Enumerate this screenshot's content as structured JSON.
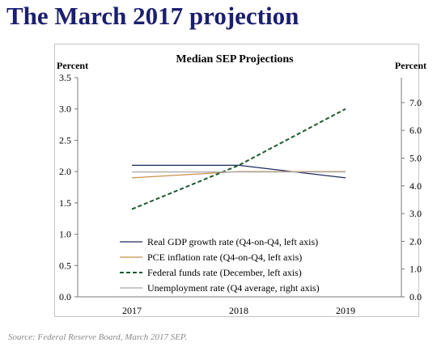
{
  "page": {
    "title": "The March 2017 projection",
    "source": "Source: Federal Reserve Board, March 2017 SEP."
  },
  "chart_data": {
    "type": "line",
    "title": "Median SEP Projections",
    "ylabel_left": "Percent",
    "ylabel_right": "Percent",
    "categories": [
      "2017",
      "2018",
      "2019"
    ],
    "ylim_left": [
      0,
      3.5
    ],
    "yticks_left": [
      "0.0",
      "0.5",
      "1.0",
      "1.5",
      "2.0",
      "2.5",
      "3.0",
      "3.5"
    ],
    "ylim_right": [
      0,
      7.9
    ],
    "yticks_right": [
      "0.0",
      "1.0",
      "2.0",
      "3.0",
      "4.0",
      "5.0",
      "6.0",
      "7.0"
    ],
    "grid": false,
    "legend_position": "bottom-center",
    "series": [
      {
        "name": "Real GDP growth rate (Q4-on-Q4, left axis)",
        "axis": "left",
        "values": [
          2.1,
          2.1,
          1.9
        ],
        "color": "#1f2a5c",
        "dash": "none"
      },
      {
        "name": "PCE inflation rate (Q4-on-Q4, left axis)",
        "axis": "left",
        "values": [
          1.9,
          2.0,
          2.0
        ],
        "color": "#c8914a",
        "dash": "none"
      },
      {
        "name": "Federal funds rate (December, left axis)",
        "axis": "left",
        "values": [
          1.4,
          2.1,
          3.0
        ],
        "color": "#1d5a32",
        "dash": "dashed"
      },
      {
        "name": "Unemployment rate (Q4 average, right axis)",
        "axis": "right",
        "values": [
          4.5,
          4.5,
          4.5
        ],
        "color": "#a8a8a8",
        "dash": "none"
      }
    ]
  }
}
